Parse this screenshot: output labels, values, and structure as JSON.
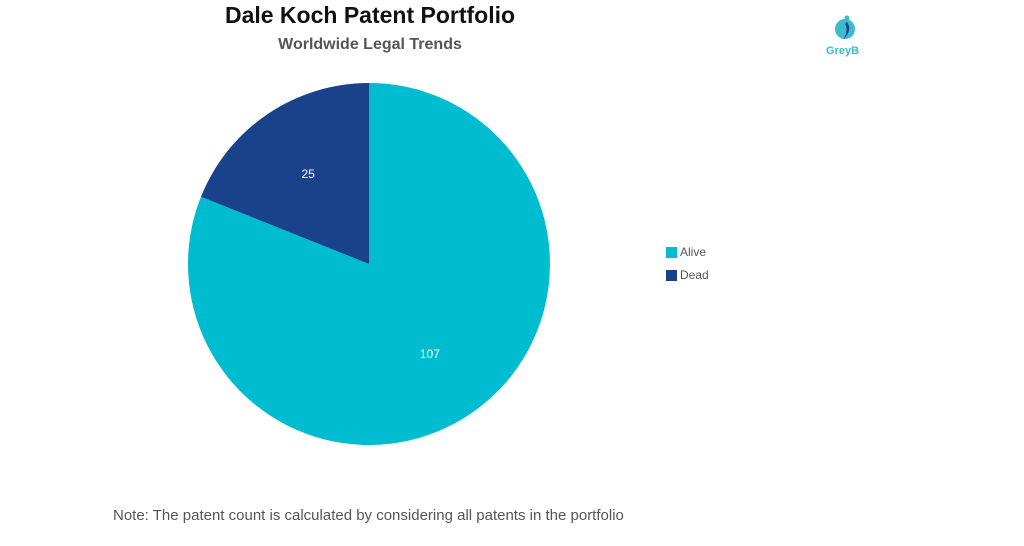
{
  "chart_data": {
    "type": "pie",
    "title": "Dale Koch Patent Portfolio",
    "subtitle": "Worldwide Legal Trends",
    "slices": [
      {
        "label": "Alive",
        "value": 107,
        "color": "#00BCD0"
      },
      {
        "label": "Dead",
        "value": 25,
        "color": "#1A428A"
      }
    ],
    "legend_placement": "right"
  },
  "logo": {
    "text": "GreyB"
  },
  "note": "Note: The patent count is calculated by considering all patents in the portfolio"
}
